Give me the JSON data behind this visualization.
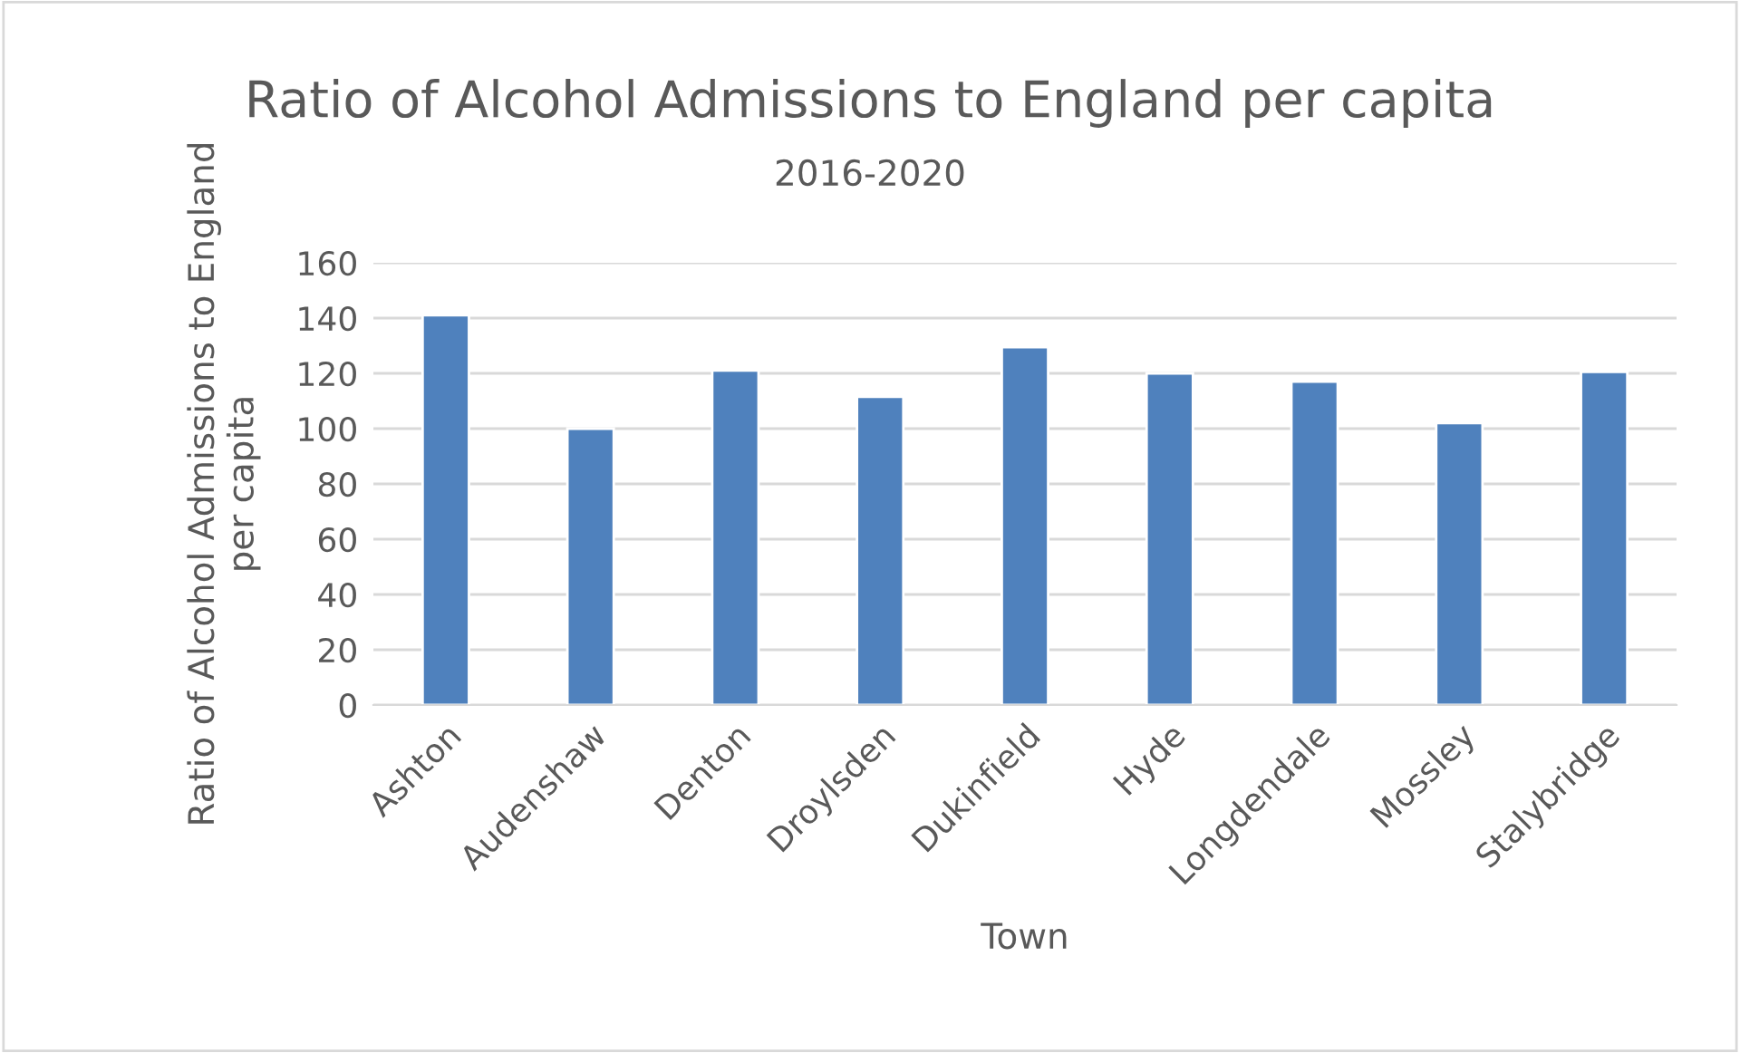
{
  "chart_data": {
    "type": "bar",
    "title": "Ratio of Alcohol Admissions to England per capita",
    "subtitle": "2016-2020",
    "xlabel": "Town",
    "ylabel": "Ratio of Alcohol Admissions to England\nper capita",
    "categories": [
      "Ashton",
      "Audenshaw",
      "Denton",
      "Droylsden",
      "Dukinfield",
      "Hyde",
      "Longdendale",
      "Mossley",
      "Stalybridge"
    ],
    "values": [
      141,
      100,
      121,
      111.5,
      129.5,
      120,
      117,
      102,
      120.5
    ],
    "color": "#4f81bd",
    "ylim": [
      0,
      160
    ],
    "yticks": [
      0,
      20,
      40,
      60,
      80,
      100,
      120,
      140,
      160
    ],
    "grid": "y",
    "legend": false
  }
}
